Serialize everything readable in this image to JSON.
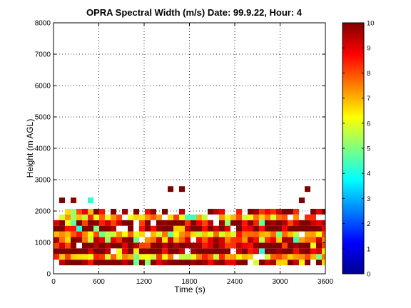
{
  "chart_data": {
    "type": "heatmap",
    "title": "OPRA Spectral Width (m/s)  Date: 99.9.22, Hour: 4",
    "xlabel": "Time (s)",
    "ylabel": "Height (m AGL)",
    "xlim": [
      0,
      3600
    ],
    "ylim": [
      0,
      8000
    ],
    "xticks": [
      "0",
      "600",
      "1200",
      "1800",
      "2400",
      "3000",
      "3600"
    ],
    "yticks": [
      "0",
      "1000",
      "2000",
      "3000",
      "4000",
      "5000",
      "6000",
      "7000",
      "8000"
    ],
    "grid": true,
    "colormap": "jet",
    "clim": [
      0,
      10
    ],
    "colorbar_ticks": [
      "0",
      "1",
      "2",
      "3",
      "4",
      "5",
      "6",
      "7",
      "8",
      "9",
      "10"
    ],
    "height_bins_m": 180,
    "layers": [
      {
        "height_m": 360,
        "value": 10
      },
      {
        "height_m": 540,
        "value": 7
      },
      {
        "height_m": 720,
        "value": 10
      },
      {
        "height_m": 900,
        "value": 9.5
      },
      {
        "height_m": 1080,
        "value": 8.5
      },
      {
        "height_m": 1260,
        "value": 7.2
      },
      {
        "height_m": 1440,
        "value": 10
      },
      {
        "height_m": 1620,
        "value": 9.5
      },
      {
        "height_m": 1800,
        "value": 7
      },
      {
        "height_m": 1980,
        "value": 9.5
      },
      {
        "height_m": 2340,
        "value": 10
      },
      {
        "height_m": 2700,
        "value": 10
      }
    ],
    "colors": {
      "low": "#00008f",
      "high": "#800000",
      "empty": "#ffffff"
    }
  }
}
